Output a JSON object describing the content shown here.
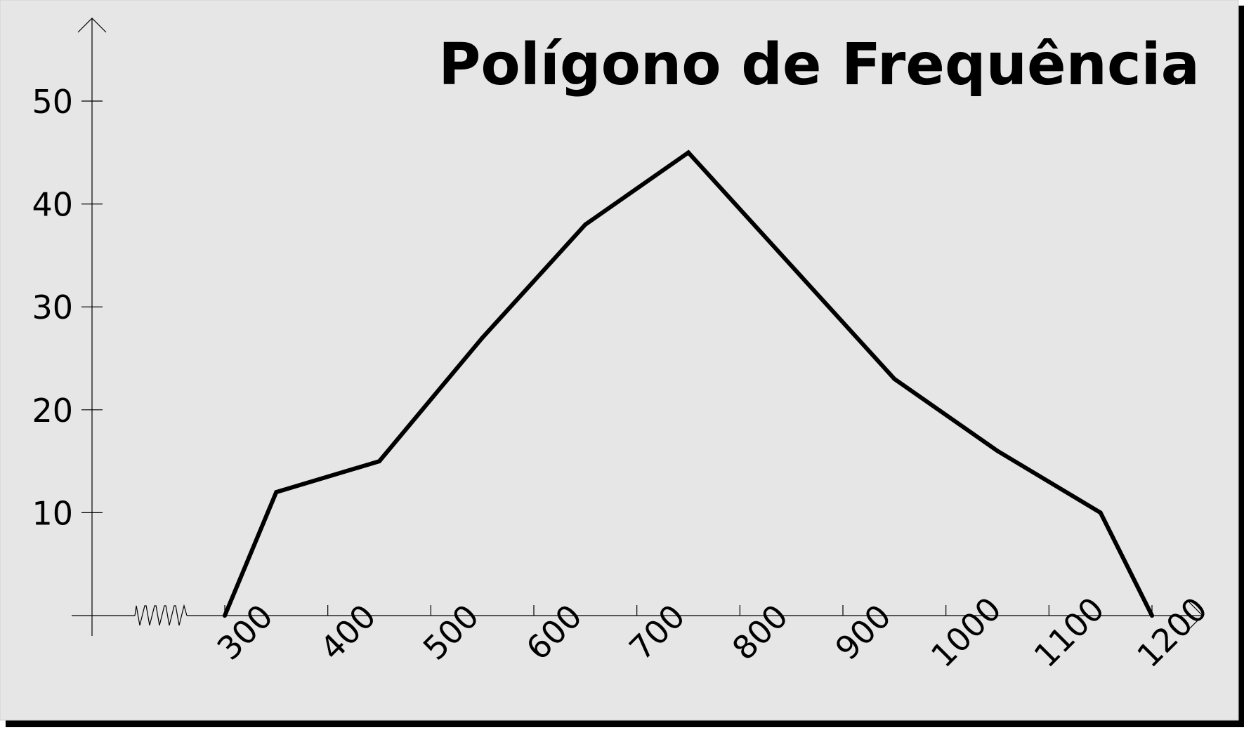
{
  "colors": {
    "background": "#e6e6e6",
    "line": "#000000",
    "axis": "#000000",
    "shadow": "#000000"
  },
  "chart_data": {
    "type": "line",
    "title": "Polígono de Frequência",
    "xlabel": "",
    "ylabel": "",
    "x": [
      300,
      350,
      450,
      550,
      650,
      750,
      850,
      950,
      1050,
      1150,
      1200
    ],
    "values": [
      0,
      12,
      15,
      27,
      38,
      45,
      34,
      23,
      16,
      10,
      0
    ],
    "xlim": [
      200,
      1200
    ],
    "ylim": [
      0,
      50
    ],
    "x_axis_break": true,
    "x_ticks": [
      "300",
      "400",
      "500",
      "600",
      "700",
      "800",
      "900",
      "1000",
      "1100",
      "1200"
    ],
    "y_ticks": [
      "10",
      "20",
      "30",
      "40",
      "50"
    ],
    "grid": false,
    "legend": "none"
  }
}
